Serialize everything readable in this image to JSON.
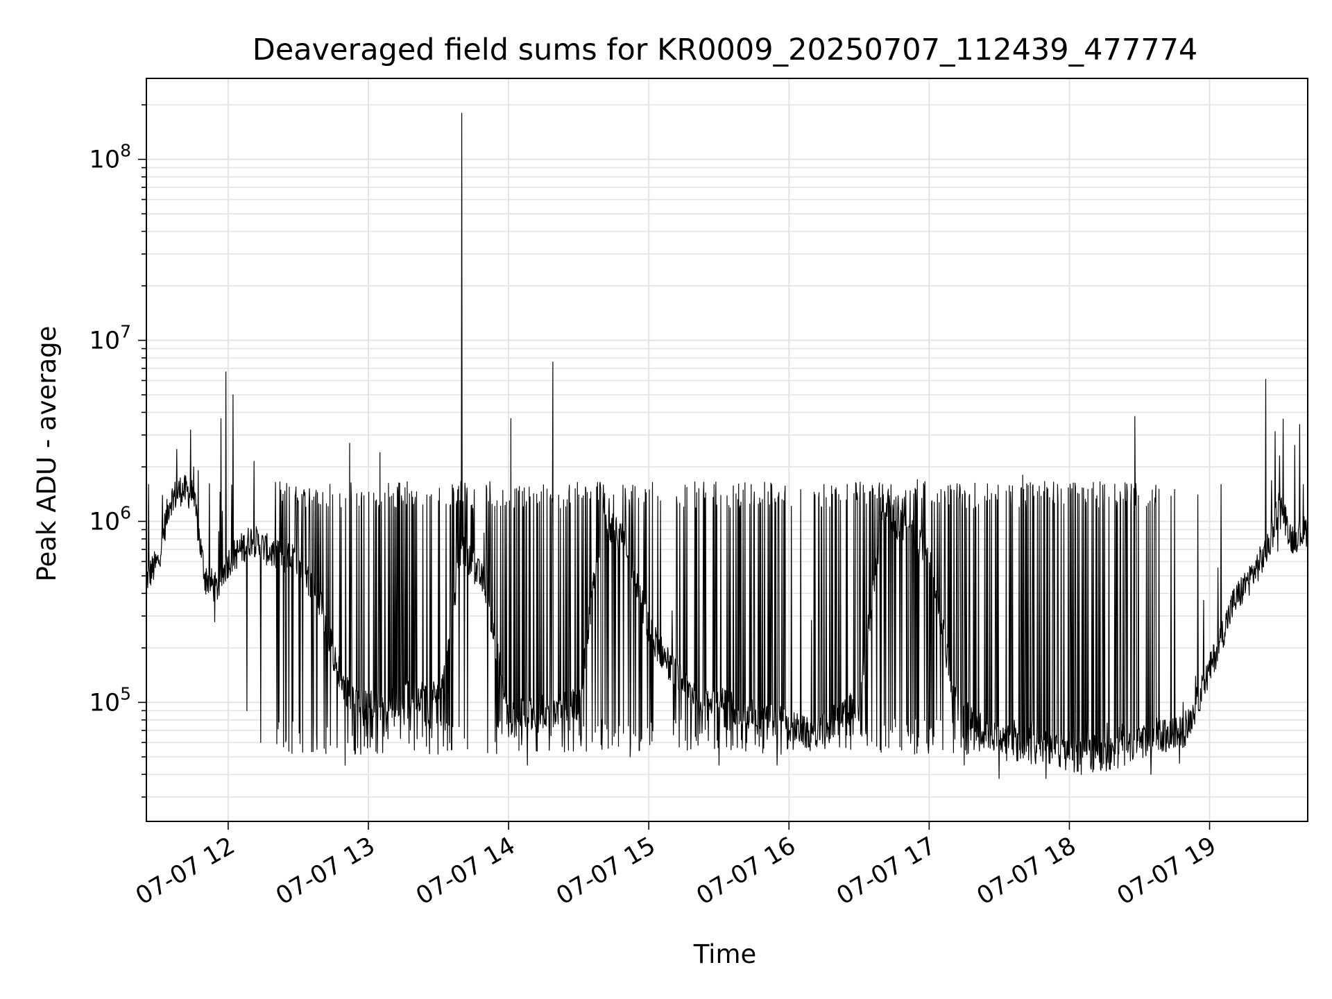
{
  "chart_data": {
    "type": "line",
    "title": "Deaveraged field sums for KR0009_20250707_112439_477774",
    "xlabel": "Time",
    "ylabel": "Peak ADU - average",
    "xscale": "time",
    "yscale": "log",
    "xlim": [
      "2025-07-07T11:25",
      "2025-07-07T19:42"
    ],
    "ylim": [
      22000,
      280000000
    ],
    "grid": true,
    "legend": "none",
    "line_color": "#000000",
    "x_ticks": [
      "07-07 12",
      "07-07 13",
      "07-07 14",
      "07-07 15",
      "07-07 16",
      "07-07 17",
      "07-07 18",
      "07-07 19"
    ],
    "y_ticks": [
      {
        "base": "10",
        "exp": "5",
        "value": 100000
      },
      {
        "base": "10",
        "exp": "6",
        "value": 1000000
      },
      {
        "base": "10",
        "exp": "7",
        "value": 10000000
      },
      {
        "base": "10",
        "exp": "8",
        "value": 100000000
      }
    ],
    "series": [
      {
        "baseline": {
          "x": [
            "11:25",
            "11:30",
            "11:35",
            "11:40",
            "11:45",
            "11:50",
            "11:55",
            "12:00",
            "12:10",
            "12:20",
            "12:30",
            "12:40",
            "12:45",
            "12:50",
            "12:55",
            "13:00",
            "13:10",
            "13:20",
            "13:30",
            "13:40",
            "13:50",
            "14:00",
            "14:10",
            "14:20",
            "14:30",
            "14:40",
            "14:50",
            "15:00",
            "15:10",
            "15:20",
            "15:30",
            "15:40",
            "15:50",
            "16:00",
            "16:10",
            "16:20",
            "16:30",
            "16:40",
            "16:50",
            "17:00",
            "17:10",
            "17:20",
            "17:30",
            "17:40",
            "17:50",
            "18:00",
            "18:10",
            "18:20",
            "18:30",
            "18:40",
            "18:50",
            "19:00",
            "19:10",
            "19:20",
            "19:25",
            "19:30",
            "19:35",
            "19:42"
          ],
          "y": [
            480000,
            600000,
            1300000,
            1500000,
            1400000,
            500000,
            420000,
            600000,
            800000,
            650000,
            600000,
            350000,
            180000,
            120000,
            100000,
            95000,
            100000,
            110000,
            110000,
            700000,
            450000,
            80000,
            90000,
            90000,
            100000,
            1000000,
            800000,
            250000,
            150000,
            110000,
            100000,
            90000,
            85000,
            75000,
            65000,
            80000,
            100000,
            1100000,
            900000,
            700000,
            120000,
            75000,
            60000,
            55000,
            55000,
            50000,
            50000,
            52000,
            60000,
            65000,
            70000,
            150000,
            350000,
            550000,
            700000,
            1300000,
            800000,
            900000
          ]
        },
        "spikes": {
          "x": [
            "11:26",
            "11:38",
            "11:44",
            "11:57",
            "11:59",
            "12:02",
            "12:08",
            "12:14",
            "12:30",
            "12:38",
            "12:50",
            "12:52",
            "12:59",
            "13:05",
            "13:15",
            "13:25",
            "13:40",
            "13:55",
            "14:01",
            "14:08",
            "14:19",
            "14:30",
            "14:45",
            "14:52",
            "15:05",
            "15:15",
            "15:30",
            "15:45",
            "15:55",
            "16:05",
            "16:15",
            "16:25",
            "16:40",
            "16:55",
            "17:05",
            "17:15",
            "17:20",
            "17:30",
            "17:40",
            "17:50",
            "17:55",
            "18:05",
            "18:15",
            "18:28",
            "18:35",
            "18:45",
            "18:55",
            "19:05",
            "19:24",
            "19:30",
            "19:40"
          ],
          "y": [
            1600000,
            2500000,
            3200000,
            3700000,
            6700000,
            5000000,
            90000,
            60000,
            1300000,
            55000,
            45000,
            2700000,
            65000,
            2400000,
            1300000,
            1400000,
            180000000,
            1300000,
            3700000,
            45000,
            7600000,
            1400000,
            1400000,
            50000,
            1300000,
            1200000,
            45000,
            1200000,
            45000,
            1500000,
            1600000,
            1600000,
            1600000,
            1700000,
            1500000,
            45000,
            1200000,
            38000,
            1800000,
            38000,
            1600000,
            40000,
            1600000,
            3800000,
            40000,
            1500000,
            1400000,
            1600000,
            6100000,
            2300000,
            1600000
          ]
        }
      }
    ]
  }
}
